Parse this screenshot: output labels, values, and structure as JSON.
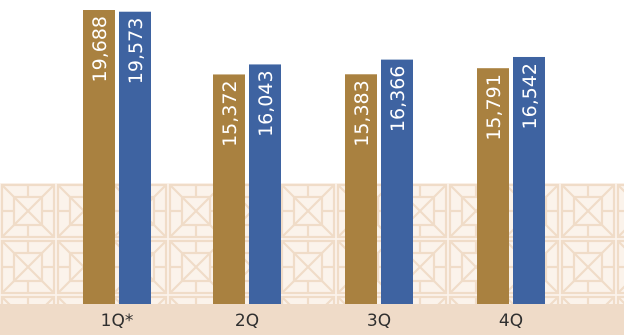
{
  "chart_data": {
    "type": "bar",
    "categories": [
      "1Q*",
      "2Q",
      "3Q",
      "4Q"
    ],
    "series": [
      {
        "color": "#A98140",
        "values": [
          19688,
          15372,
          15383,
          15791
        ]
      },
      {
        "color": "#3E63A1",
        "values": [
          19573,
          16043,
          16366,
          16542
        ]
      }
    ],
    "data_labels": [
      [
        "19,688",
        "15,372",
        "15,383",
        "15,791"
      ],
      [
        "19,573",
        "16,043",
        "16,366",
        "16,542"
      ]
    ],
    "grid": false,
    "legend": "none",
    "colors": {
      "background_pattern": "#F3E3D3",
      "axis_band": "#EFDBC8",
      "label_text": "#FFFFFF"
    }
  }
}
